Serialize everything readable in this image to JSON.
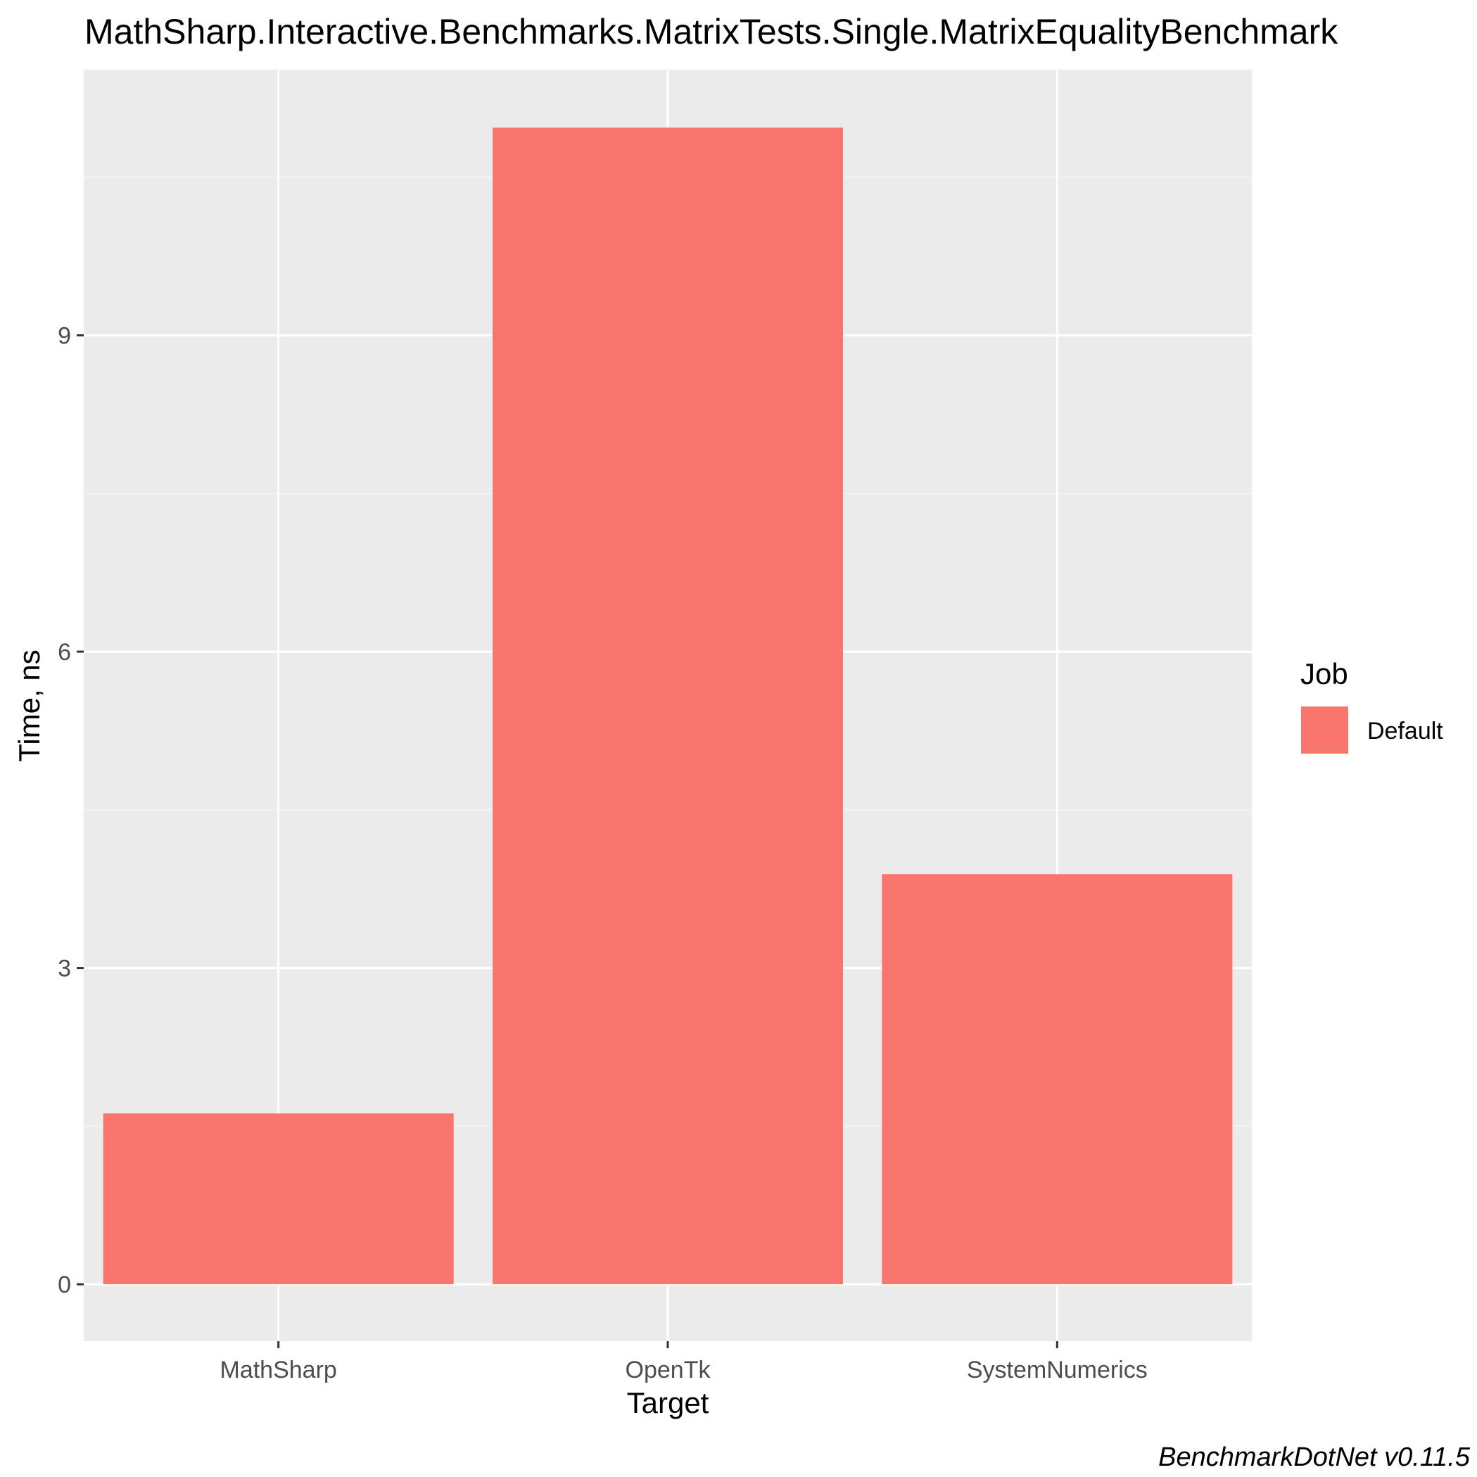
{
  "chart_data": {
    "type": "bar",
    "title": "MathSharp.Interactive.Benchmarks.MatrixTests.Single.MatrixEqualityBenchmark",
    "xlabel": "Target",
    "ylabel": "Time, ns",
    "categories": [
      "MathSharp",
      "OpenTk",
      "SystemNumerics"
    ],
    "series": [
      {
        "name": "Default",
        "values": [
          1.62,
          10.97,
          3.89
        ]
      }
    ],
    "ylim": [
      -0.54,
      11.52
    ],
    "yticks": [
      0,
      3,
      6,
      9
    ],
    "ytick_labels": [
      "0",
      "3",
      "6",
      "9"
    ],
    "grid": true,
    "legend": {
      "title": "Job",
      "position": "right"
    },
    "caption": "BenchmarkDotNet v0.11.5",
    "colors": {
      "bar": "#F8766D",
      "panel": "#EBEBEB",
      "grid_major": "#FFFFFF",
      "grid_minor": "#F5F5F5"
    }
  }
}
